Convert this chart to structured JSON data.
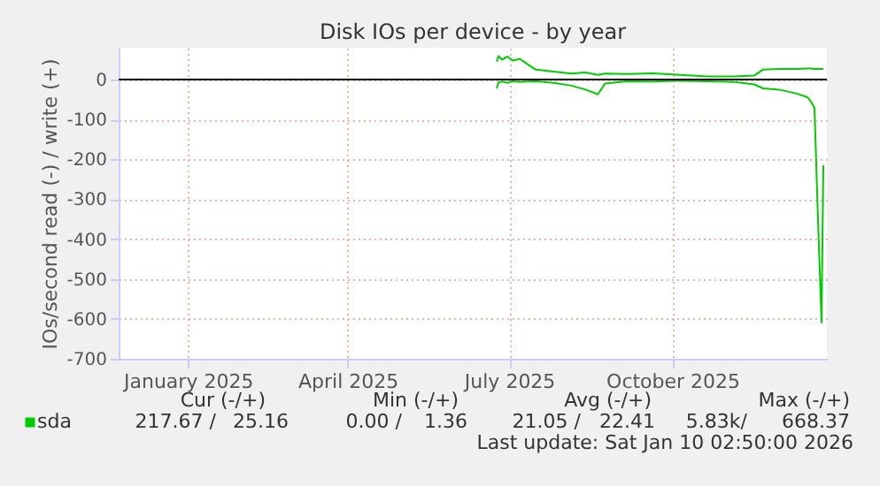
{
  "chart_data": {
    "type": "line",
    "title": "Disk IOs per device - by year",
    "ylabel": "IOs/second read (-) / write (+)",
    "x": [
      "2025-07-09",
      "2025-07-10",
      "2025-07-12",
      "2025-07-15",
      "2025-07-18",
      "2025-07-22",
      "2025-07-26",
      "2025-07-31",
      "2025-08-10",
      "2025-08-20",
      "2025-08-28",
      "2025-09-04",
      "2025-09-08",
      "2025-09-20",
      "2025-10-05",
      "2025-10-20",
      "2025-11-05",
      "2025-11-20",
      "2025-12-01",
      "2025-12-06",
      "2025-12-15",
      "2025-12-25",
      "2025-12-31",
      "2026-01-02",
      "2026-01-04",
      "2026-01-06",
      "2026-01-08",
      "2026-01-09"
    ],
    "series": [
      {
        "name": "sda",
        "color": "#00cc00",
        "values": [
          -22,
          -7,
          -5,
          -8,
          -4,
          -6,
          -5,
          -4,
          -8,
          -15,
          -25,
          -37,
          -10,
          -4,
          -5,
          -3,
          -4,
          -6,
          -12,
          -22,
          -25,
          -35,
          -44,
          -55,
          -70,
          -350,
          -609,
          -215
        ]
      },
      {
        "color": "#00cc00",
        "values": [
          45,
          59,
          50,
          58,
          48,
          52,
          40,
          25,
          20,
          15,
          18,
          12,
          15,
          14,
          16,
          12,
          8,
          8,
          10,
          25,
          27,
          27,
          28,
          28,
          27,
          27,
          27,
          27
        ]
      }
    ],
    "xlim": [
      "2024-12-08",
      "2026-01-11"
    ],
    "xticks": [
      {
        "value": "2025-01-16",
        "label": "January 2025"
      },
      {
        "value": "2025-04-16",
        "label": "April 2025"
      },
      {
        "value": "2025-07-16",
        "label": "July 2025"
      },
      {
        "value": "2025-10-16",
        "label": "October 2025"
      }
    ],
    "ylim": [
      -700,
      80
    ],
    "yticks": [
      -700,
      -600,
      -500,
      -400,
      -300,
      -200,
      -100,
      0
    ],
    "ref_lines": [
      {
        "axis": "y",
        "value": 0,
        "color": "#000000"
      }
    ],
    "grid": true,
    "legend": "bottom",
    "annotations": [
      "Cur (-/+)",
      "Min (-/+)",
      "Avg (-/+)",
      "Max (-/+)",
      "217.67 /",
      "25.16",
      "0.00 /",
      "1.36",
      "21.05 /",
      "22.41",
      "5.83k/",
      "668.37",
      "Last update: Sat Jan 10 02:50:00 2026"
    ]
  }
}
